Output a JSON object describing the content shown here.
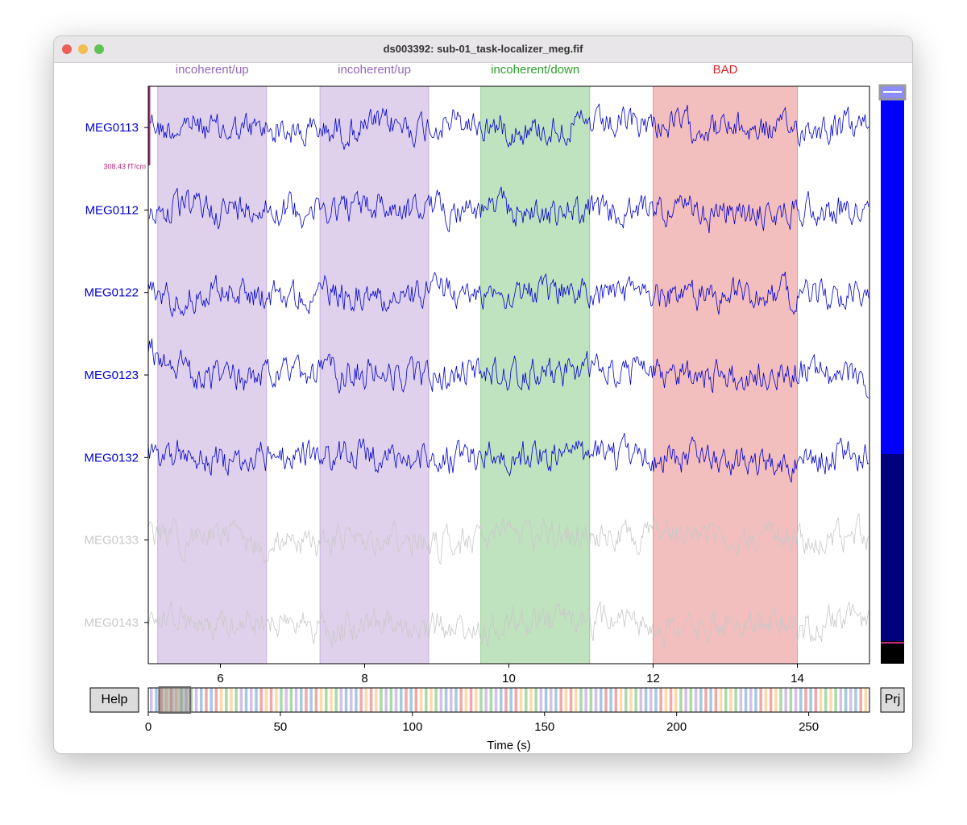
{
  "window": {
    "title": "ds003392: sub-01_task-localizer_meg.fif"
  },
  "main": {
    "xlim": [
      5,
      15
    ],
    "xticks": [
      6,
      8,
      10,
      12,
      14
    ],
    "scale_label": "308.43 fT/cm",
    "channels": [
      {
        "name": "MEG0113",
        "color": "#0000cc",
        "bad": false
      },
      {
        "name": "MEG0112",
        "color": "#0000cc",
        "bad": false
      },
      {
        "name": "MEG0122",
        "color": "#0000cc",
        "bad": false
      },
      {
        "name": "MEG0123",
        "color": "#0000cc",
        "bad": false
      },
      {
        "name": "MEG0132",
        "color": "#0000cc",
        "bad": false
      },
      {
        "name": "MEG0133",
        "color": "#c8c8c8",
        "bad": true
      },
      {
        "name": "MEG0143",
        "color": "#c8c8c8",
        "bad": true
      }
    ],
    "annotations": [
      {
        "label": "incoherent/up",
        "start": 5.13,
        "end": 6.64,
        "color": "#9467bd"
      },
      {
        "label": "incoherent/up",
        "start": 7.38,
        "end": 8.89,
        "color": "#9467bd"
      },
      {
        "label": "incoherent/down",
        "start": 9.61,
        "end": 11.12,
        "color": "#2ca02c"
      },
      {
        "label": "BAD",
        "start": 12.0,
        "end": 14.0,
        "color": "#d62728"
      }
    ]
  },
  "overview": {
    "xlim": [
      0,
      273
    ],
    "xticks": [
      0,
      50,
      100,
      150,
      200,
      250
    ],
    "xlabel": "Time (s)"
  },
  "buttons": {
    "help": "Help",
    "proj": "Prj"
  }
}
